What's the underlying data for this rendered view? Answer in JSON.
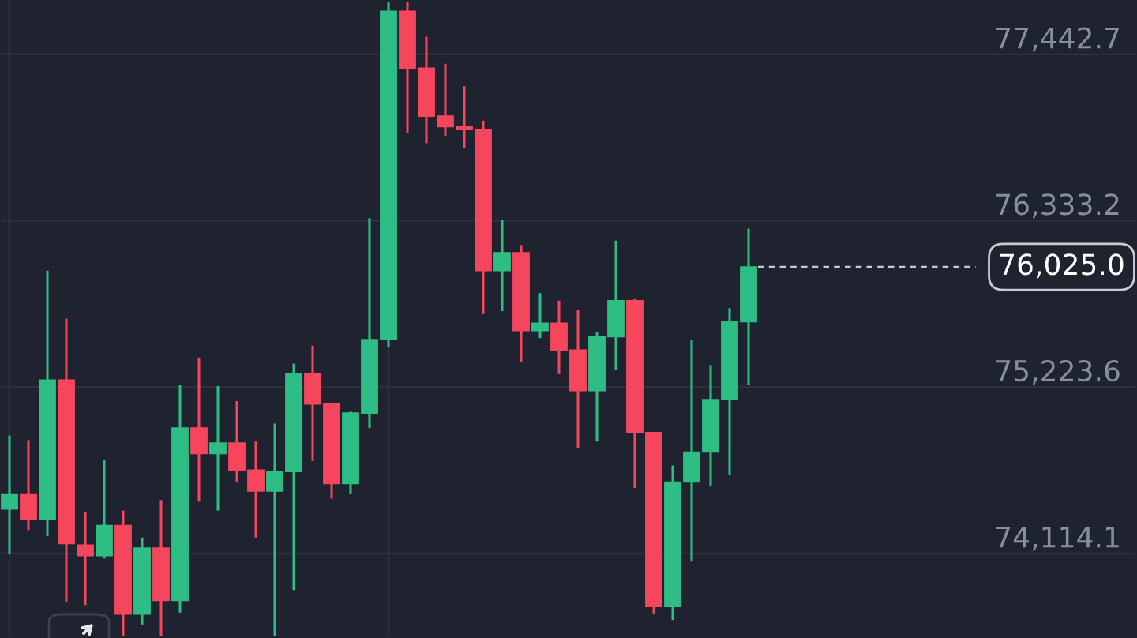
{
  "chart_data": {
    "type": "candlestick",
    "categories": [
      null,
      null,
      null,
      null,
      null,
      null,
      null,
      null,
      null,
      null,
      null,
      null,
      null,
      null,
      null,
      null,
      null,
      null,
      null,
      null,
      null,
      null,
      null,
      null,
      null,
      null,
      null,
      null,
      null,
      null,
      null,
      null,
      null,
      null,
      null,
      null,
      null,
      null,
      null,
      null,
      null,
      null,
      null,
      null,
      null,
      null,
      null,
      null,
      null,
      null,
      null,
      null,
      null,
      null,
      null,
      null,
      null,
      null,
      null,
      null
    ],
    "ohlc": [
      [
        74410,
        74900,
        74110,
        74510
      ],
      [
        74510,
        74870,
        74270,
        74340
      ],
      [
        74340,
        76000,
        74230,
        75270
      ],
      [
        75270,
        75680,
        73790,
        74180
      ],
      [
        74170,
        74390,
        73770,
        74100
      ],
      [
        74100,
        74740,
        74080,
        74300
      ],
      [
        74300,
        74400,
        73560,
        73710
      ],
      [
        73710,
        74220,
        73640,
        74150
      ],
      [
        74150,
        74470,
        73560,
        73800
      ],
      [
        73800,
        75240,
        73720,
        74950
      ],
      [
        74950,
        75420,
        74460,
        74780
      ],
      [
        74780,
        75230,
        74400,
        74850
      ],
      [
        74850,
        75130,
        74590,
        74670
      ],
      [
        74670,
        74860,
        74220,
        74530
      ],
      [
        74530,
        74980,
        73560,
        74660
      ],
      [
        74660,
        75380,
        73870,
        75310
      ],
      [
        75310,
        75500,
        74730,
        75110
      ],
      [
        75110,
        75120,
        74480,
        74580
      ],
      [
        74580,
        75060,
        74510,
        75050
      ],
      [
        75050,
        76350,
        74950,
        75540
      ],
      [
        75540,
        77790,
        75490,
        77730
      ],
      [
        77730,
        77790,
        76920,
        77350
      ],
      [
        77350,
        77560,
        76850,
        77030
      ],
      [
        77030,
        77380,
        76900,
        76960
      ],
      [
        76960,
        77230,
        76820,
        76940
      ],
      [
        76940,
        77000,
        75710,
        76000
      ],
      [
        76000,
        76340,
        75730,
        76120
      ],
      [
        76120,
        76170,
        75390,
        75600
      ],
      [
        75600,
        75850,
        75550,
        75650
      ],
      [
        75650,
        75800,
        75310,
        75470
      ],
      [
        75470,
        75740,
        74820,
        75200
      ],
      [
        75200,
        75590,
        74860,
        75560
      ],
      [
        75560,
        76200,
        75340,
        75800
      ],
      [
        75800,
        75810,
        74550,
        74920
      ],
      [
        74920,
        74920,
        73710,
        73760
      ],
      [
        73760,
        74700,
        73670,
        74590
      ],
      [
        74590,
        75540,
        74060,
        74790
      ],
      [
        74790,
        75370,
        74560,
        75140
      ],
      [
        75140,
        75750,
        74640,
        75660
      ],
      [
        75660,
        76280,
        75240,
        76025.0
      ],
      null,
      null,
      null,
      null,
      null,
      null,
      null,
      null,
      null,
      null,
      null,
      null,
      null,
      null,
      null,
      null,
      null,
      null,
      null,
      null
    ],
    "colors": [
      "#2ebd85",
      "#f6465d",
      "#2ebd85",
      "#f6465d",
      "#f6465d",
      "#2ebd85",
      "#f6465d",
      "#2ebd85",
      "#f6465d",
      "#2ebd85",
      "#f6465d",
      "#2ebd85",
      "#f6465d",
      "#f6465d",
      "#2ebd85",
      "#2ebd85",
      "#f6465d",
      "#f6465d",
      "#2ebd85",
      "#2ebd85",
      "#2ebd85",
      "#f6465d",
      "#f6465d",
      "#f6465d",
      "#f6465d",
      "#f6465d",
      "#2ebd85",
      "#f6465d",
      "#2ebd85",
      "#f6465d",
      "#f6465d",
      "#2ebd85",
      "#2ebd85",
      "#f6465d",
      "#f6465d",
      "#2ebd85",
      "#2ebd85",
      "#2ebd85",
      "#2ebd85",
      "#2ebd85",
      null,
      null,
      null,
      null,
      null,
      null,
      null,
      null,
      null,
      null,
      null,
      null,
      null,
      null,
      null,
      null,
      null,
      null,
      null,
      null
    ],
    "ylim": [
      73550,
      77805
    ],
    "yticks": [
      {
        "value": 74114.1,
        "label": "74,114.1"
      },
      {
        "value": 75223.6,
        "label": "75,223.6"
      },
      {
        "value": 76333.2,
        "label": "76,333.2"
      },
      {
        "value": 77442.7,
        "label": "77,442.7"
      }
    ],
    "ref_lines": [
      {
        "axis": "y",
        "value": 76025.0,
        "label": "76,025.0",
        "color": "#c8ccd2",
        "line_style": "dashed"
      }
    ],
    "grid": true,
    "tick_labels": "y"
  }
}
